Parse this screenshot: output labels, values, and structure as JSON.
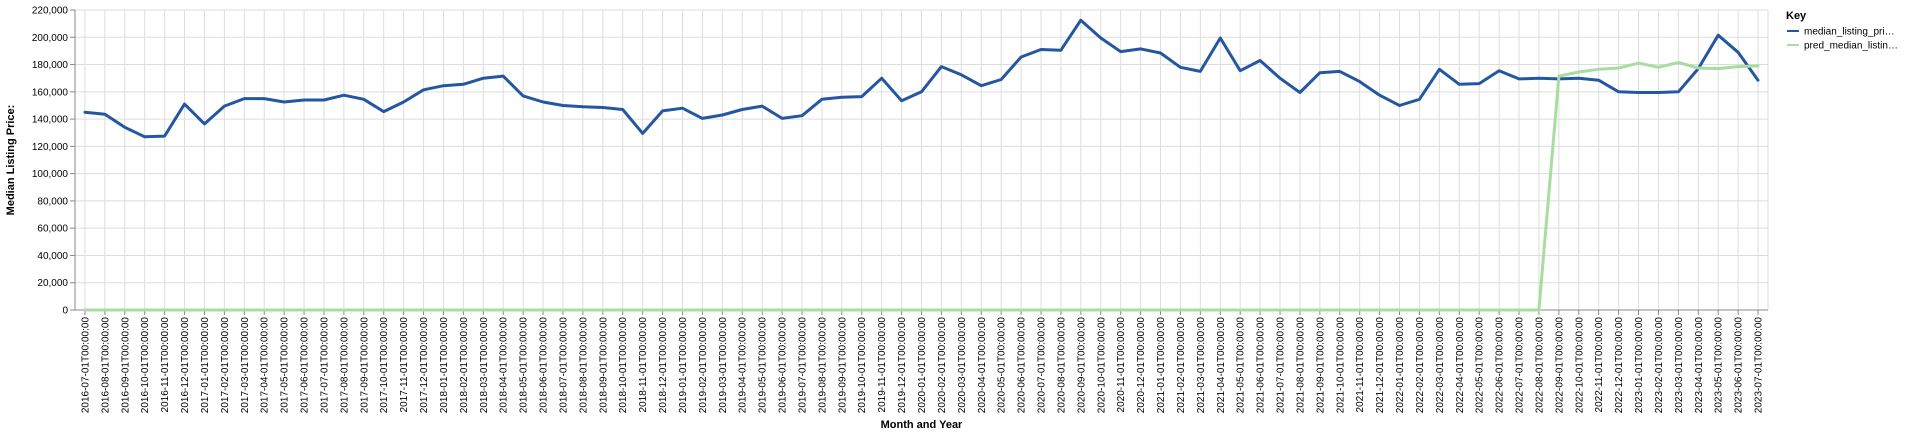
{
  "chart_data": {
    "type": "line",
    "xlabel": "Month and Year",
    "ylabel": "Median Listing Price:",
    "ylim": [
      0,
      220000
    ],
    "y_ticks": [
      "0",
      "20,000",
      "40,000",
      "60,000",
      "80,000",
      "100,000",
      "120,000",
      "140,000",
      "160,000",
      "180,000",
      "200,000",
      "220,000"
    ],
    "grid": true,
    "legend_title": "Key",
    "legend_position": "right",
    "categories": [
      "2016-07-01T00:00:00",
      "2016-08-01T00:00:00",
      "2016-09-01T00:00:00",
      "2016-10-01T00:00:00",
      "2016-11-01T00:00:00",
      "2016-12-01T00:00:00",
      "2017-01-01T00:00:00",
      "2017-02-01T00:00:00",
      "2017-03-01T00:00:00",
      "2017-04-01T00:00:00",
      "2017-05-01T00:00:00",
      "2017-06-01T00:00:00",
      "2017-07-01T00:00:00",
      "2017-08-01T00:00:00",
      "2017-09-01T00:00:00",
      "2017-10-01T00:00:00",
      "2017-11-01T00:00:00",
      "2017-12-01T00:00:00",
      "2018-01-01T00:00:00",
      "2018-02-01T00:00:00",
      "2018-03-01T00:00:00",
      "2018-04-01T00:00:00",
      "2018-05-01T00:00:00",
      "2018-06-01T00:00:00",
      "2018-07-01T00:00:00",
      "2018-08-01T00:00:00",
      "2018-09-01T00:00:00",
      "2018-10-01T00:00:00",
      "2018-11-01T00:00:00",
      "2018-12-01T00:00:00",
      "2019-01-01T00:00:00",
      "2019-02-01T00:00:00",
      "2019-03-01T00:00:00",
      "2019-04-01T00:00:00",
      "2019-05-01T00:00:00",
      "2019-06-01T00:00:00",
      "2019-07-01T00:00:00",
      "2019-08-01T00:00:00",
      "2019-09-01T00:00:00",
      "2019-10-01T00:00:00",
      "2019-11-01T00:00:00",
      "2019-12-01T00:00:00",
      "2020-01-01T00:00:00",
      "2020-02-01T00:00:00",
      "2020-03-01T00:00:00",
      "2020-04-01T00:00:00",
      "2020-05-01T00:00:00",
      "2020-06-01T00:00:00",
      "2020-07-01T00:00:00",
      "2020-08-01T00:00:00",
      "2020-09-01T00:00:00",
      "2020-10-01T00:00:00",
      "2020-11-01T00:00:00",
      "2020-12-01T00:00:00",
      "2021-01-01T00:00:00",
      "2021-02-01T00:00:00",
      "2021-03-01T00:00:00",
      "2021-04-01T00:00:00",
      "2021-05-01T00:00:00",
      "2021-06-01T00:00:00",
      "2021-07-01T00:00:00",
      "2021-08-01T00:00:00",
      "2021-09-01T00:00:00",
      "2021-10-01T00:00:00",
      "2021-11-01T00:00:00",
      "2021-12-01T00:00:00",
      "2022-01-01T00:00:00",
      "2022-02-01T00:00:00",
      "2022-03-01T00:00:00",
      "2022-04-01T00:00:00",
      "2022-05-01T00:00:00",
      "2022-06-01T00:00:00",
      "2022-07-01T00:00:00",
      "2022-08-01T00:00:00",
      "2022-09-01T00:00:00",
      "2022-10-01T00:00:00",
      "2022-11-01T00:00:00",
      "2022-12-01T00:00:00",
      "2023-01-01T00:00:00",
      "2023-02-01T00:00:00",
      "2023-03-01T00:00:00",
      "2023-04-01T00:00:00",
      "2023-05-01T00:00:00",
      "2023-06-01T00:00:00",
      "2023-07-01T00:00:00"
    ],
    "series": [
      {
        "name": "median_listing_pri…",
        "color": "#2557a0",
        "values": [
          145000,
          143500,
          134000,
          127000,
          127500,
          151000,
          136500,
          149500,
          155000,
          155000,
          152500,
          154000,
          154000,
          157500,
          154500,
          145500,
          152500,
          161500,
          164500,
          165500,
          170000,
          171500,
          157000,
          152500,
          150000,
          149000,
          148500,
          147000,
          129500,
          146000,
          148000,
          140500,
          143000,
          147000,
          149500,
          140500,
          142500,
          154500,
          156000,
          156500,
          170000,
          153500,
          160000,
          178500,
          172500,
          164500,
          169000,
          185500,
          191000,
          190500,
          212500,
          199500,
          189500,
          191500,
          188500,
          178000,
          175000,
          199500,
          175500,
          183000,
          170000,
          159500,
          174000,
          175000,
          167500,
          157500,
          150000,
          154500,
          176500,
          165500,
          166000,
          175500,
          169500,
          170000,
          169500,
          170000,
          168500,
          160000,
          159500,
          159500,
          160000,
          177000,
          201500,
          189000,
          168500
        ]
      },
      {
        "name": "pred_median_listin…",
        "color": "#a8dca0",
        "values": [
          0,
          0,
          0,
          0,
          0,
          0,
          0,
          0,
          0,
          0,
          0,
          0,
          0,
          0,
          0,
          0,
          0,
          0,
          0,
          0,
          0,
          0,
          0,
          0,
          0,
          0,
          0,
          0,
          0,
          0,
          0,
          0,
          0,
          0,
          0,
          0,
          0,
          0,
          0,
          0,
          0,
          0,
          0,
          0,
          0,
          0,
          0,
          0,
          0,
          0,
          0,
          0,
          0,
          0,
          0,
          0,
          0,
          0,
          0,
          0,
          0,
          0,
          0,
          0,
          0,
          0,
          0,
          0,
          0,
          0,
          0,
          0,
          0,
          0,
          171500,
          174500,
          176500,
          177500,
          181000,
          178000,
          181500,
          177500,
          177000,
          178500,
          179000
        ]
      }
    ]
  }
}
